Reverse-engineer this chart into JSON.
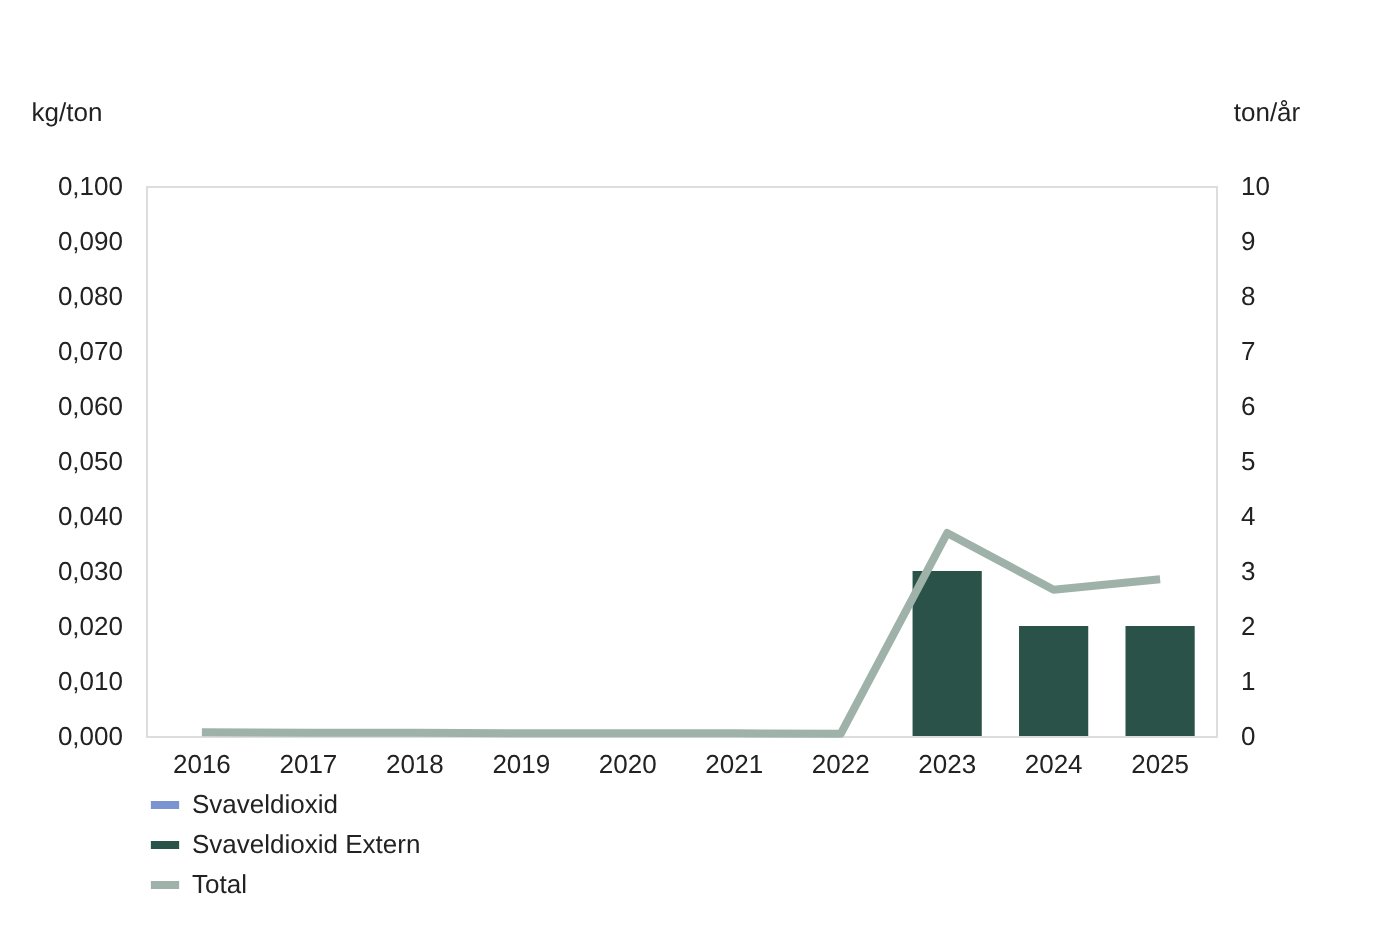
{
  "chart_data": {
    "type": "bar",
    "categories": [
      "2016",
      "2017",
      "2018",
      "2019",
      "2020",
      "2021",
      "2022",
      "2023",
      "2024",
      "2025"
    ],
    "ylabel": "kg/ton",
    "y2label": "ton/år",
    "ylim": [
      0,
      0.1
    ],
    "yticks": [
      {
        "value": 0,
        "label": "0,000"
      },
      {
        "value": 0.01,
        "label": "0,010"
      },
      {
        "value": 0.02,
        "label": "0,020"
      },
      {
        "value": 0.03,
        "label": "0,030"
      },
      {
        "value": 0.04,
        "label": "0,040"
      },
      {
        "value": 0.05,
        "label": "0,050"
      },
      {
        "value": 0.06,
        "label": "0,060"
      },
      {
        "value": 0.07,
        "label": "0,070"
      },
      {
        "value": 0.08,
        "label": "0,080"
      },
      {
        "value": 0.09,
        "label": "0,090"
      },
      {
        "value": 0.1,
        "label": "0,100"
      }
    ],
    "y2lim": [
      0,
      10
    ],
    "y2ticks": [
      0,
      1,
      2,
      3,
      4,
      5,
      6,
      7,
      8,
      9,
      10
    ],
    "series": [
      {
        "name": "Svaveldioxid",
        "color": "#7b93d1",
        "axis": "y2",
        "values": [
          null,
          null,
          null,
          null,
          null,
          null,
          null,
          null,
          null,
          null
        ]
      },
      {
        "name": "Svaveldioxid Extern",
        "color": "#2a5249",
        "axis": "y2",
        "values": [
          null,
          null,
          null,
          null,
          null,
          null,
          null,
          3,
          2,
          2
        ]
      },
      {
        "name": "Total",
        "color": "#9fb2aa",
        "type": "line",
        "axis": "y",
        "values": [
          0.0007,
          0.0006,
          0.0006,
          0.0005,
          0.0005,
          0.0005,
          0.0004,
          0.0369,
          0.0266,
          0.0285
        ]
      }
    ],
    "legend": "bottom left",
    "grid": false
  }
}
